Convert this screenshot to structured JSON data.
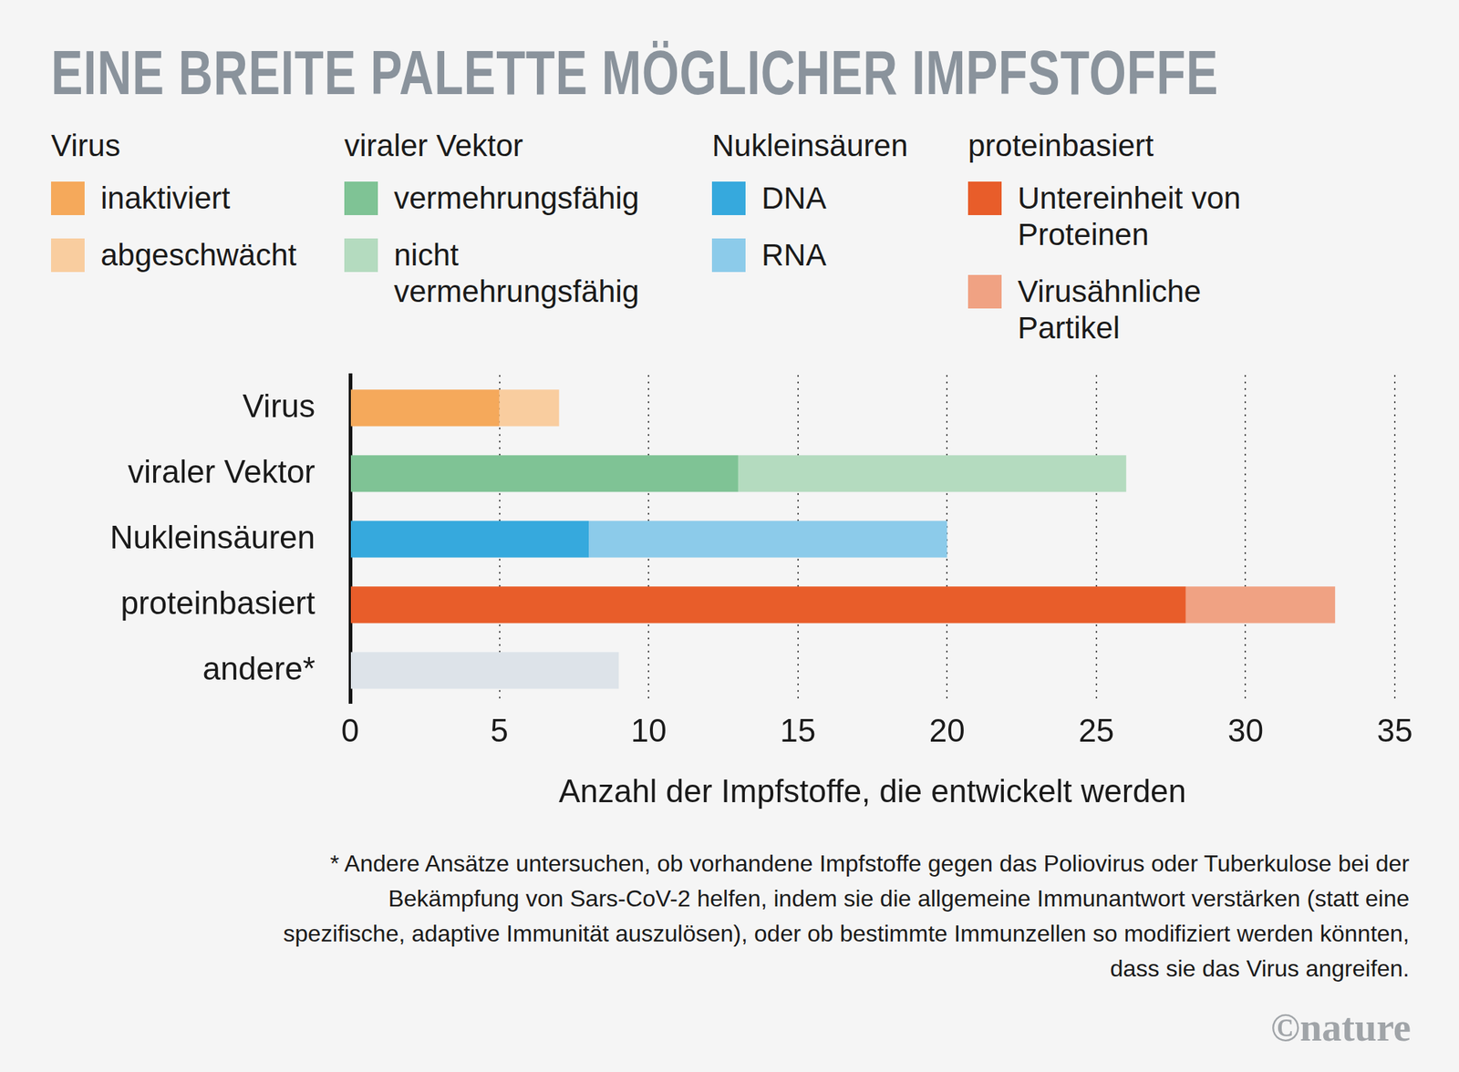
{
  "chart_data": {
    "type": "bar",
    "orientation": "horizontal",
    "stacked": true,
    "title": "EINE BREITE PALETTE MÖGLICHER IMPFSTOFFE",
    "categories": [
      "Virus",
      "viraler Vektor",
      "Nukleinsäuren",
      "proteinbasiert",
      "andere*"
    ],
    "series": [
      {
        "name": "inaktiviert",
        "group": "Virus",
        "color": "#f5a95b",
        "values": [
          5,
          null,
          null,
          null,
          null
        ]
      },
      {
        "name": "abgeschwächt",
        "group": "Virus",
        "color": "#f9cd9f",
        "values": [
          2,
          null,
          null,
          null,
          null
        ]
      },
      {
        "name": "vermehrungsfähig",
        "group": "viraler Vektor",
        "color": "#7fc395",
        "values": [
          null,
          13,
          null,
          null,
          null
        ]
      },
      {
        "name": "nicht vermehrungsfähig",
        "group": "viraler Vektor",
        "color": "#b4dbbf",
        "values": [
          null,
          13,
          null,
          null,
          null
        ]
      },
      {
        "name": "DNA",
        "group": "Nukleinsäuren",
        "color": "#36a9dd",
        "values": [
          null,
          null,
          8,
          null,
          null
        ]
      },
      {
        "name": "RNA",
        "group": "Nukleinsäuren",
        "color": "#8ccbea",
        "values": [
          null,
          null,
          12,
          null,
          null
        ]
      },
      {
        "name": "Untereinheit von Proteinen",
        "group": "proteinbasiert",
        "color": "#e85d2a",
        "values": [
          null,
          null,
          null,
          28,
          null
        ]
      },
      {
        "name": "Virusähnliche Partikel",
        "group": "proteinbasiert",
        "color": "#f0a283",
        "values": [
          null,
          null,
          null,
          5,
          null
        ]
      },
      {
        "name": "andere*",
        "color": "#dde3e9",
        "values": [
          null,
          null,
          null,
          null,
          9
        ]
      }
    ],
    "x_label": "Anzahl der Impfstoffe, die entwickelt werden",
    "xlim": [
      0,
      35
    ],
    "xticks": [
      0,
      5,
      10,
      15,
      20,
      25,
      30,
      35
    ],
    "grid": true,
    "legend": "top",
    "footnote": "* Andere Ansätze untersuchen, ob vorhandene Impfstoffe gegen das Poliovirus oder Tuberkulose bei der Bekämpfung von Sars-CoV-2 helfen, indem sie die allgemeine Immunantwort verstärken (statt eine spezifische, adaptive Immunität auszulösen), oder ob bestimmte Immunzellen so modifiziert werden könnten, dass sie das Virus angreifen.",
    "source": "©nature"
  }
}
